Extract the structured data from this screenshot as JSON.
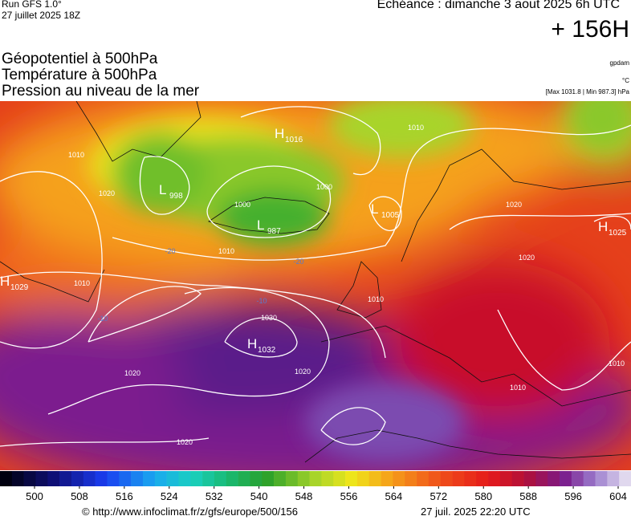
{
  "header": {
    "run": "Run GFS 1.0°",
    "date": "27 juillet 2025 18Z",
    "echeance": "Echéance : dimanche 3 aout 2025 6h UTC",
    "lead": "+ 156H"
  },
  "titles": [
    "Géopotentiel à 500hPa",
    "Température à 500hPa",
    "Pression au niveau de la mer"
  ],
  "units": [
    "gpdam",
    "°C",
    "[Max 1031.8 | Min 987.3] hPa"
  ],
  "map": {
    "centers": [
      {
        "type": "H",
        "value": 1016
      },
      {
        "type": "L",
        "value": 998
      },
      {
        "type": "L",
        "value": 987
      },
      {
        "type": "L",
        "value": 1005
      },
      {
        "type": "H",
        "value": 1025
      },
      {
        "type": "H",
        "value": 1029
      },
      {
        "type": "H",
        "value": 1032
      }
    ],
    "isobar_labels": [
      1010,
      1010,
      1010,
      1020,
      1000,
      1000,
      1010,
      1020,
      1020,
      1030,
      1020,
      1020,
      1020,
      1010,
      1010,
      1010
    ],
    "temperature_labels": [
      -20,
      -20,
      -10,
      -10
    ]
  },
  "colorbar": {
    "ticks": [
      500,
      508,
      516,
      524,
      532,
      540,
      548,
      556,
      564,
      572,
      580,
      588,
      596,
      604
    ]
  },
  "footer": {
    "url": "© http://www.infoclimat.fr/z/gfs/europe/500/156",
    "timestamp": "27 juil. 2025 22:20 UTC"
  }
}
